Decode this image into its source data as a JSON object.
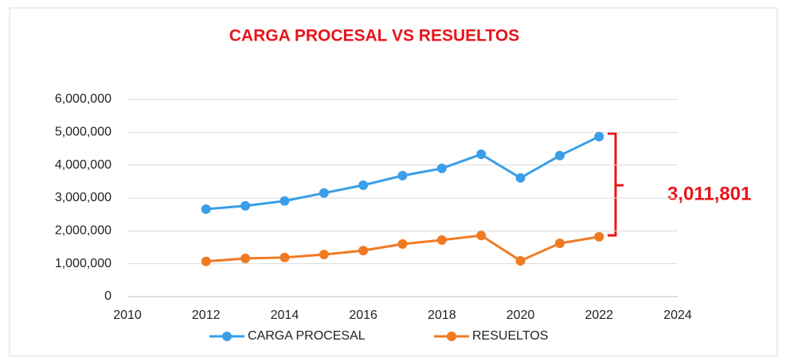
{
  "chart_data": {
    "type": "line",
    "title": "CARGA PROCESAL VS RESUELTOS",
    "annotation": "3,011,801",
    "x": [
      2012,
      2013,
      2014,
      2015,
      2016,
      2017,
      2018,
      2019,
      2020,
      2021,
      2022
    ],
    "series": [
      {
        "name": "CARGA PROCESAL",
        "color": "#3a9ee8",
        "values": [
          2660000,
          2760000,
          2910000,
          3150000,
          3390000,
          3680000,
          3900000,
          4330000,
          3610000,
          4290000,
          4870000
        ]
      },
      {
        "name": "RESUELTOS",
        "color": "#f07a22",
        "values": [
          1070000,
          1160000,
          1190000,
          1280000,
          1400000,
          1600000,
          1720000,
          1860000,
          1090000,
          1620000,
          1820000
        ]
      }
    ],
    "xlim": [
      2010,
      2024
    ],
    "xticks": [
      2010,
      2012,
      2014,
      2016,
      2018,
      2020,
      2022,
      2024
    ],
    "ylim": [
      0,
      6000000
    ],
    "yticks": [
      0,
      {
        "value": 1000000,
        "label": "1,000,000"
      },
      {
        "value": 2000000,
        "label": "2,000,000"
      },
      {
        "value": 3000000,
        "label": "3,000,000"
      },
      {
        "value": 4000000,
        "label": "4,000,000"
      },
      {
        "value": 5000000,
        "label": "5,000,000"
      },
      {
        "value": 6000000,
        "label": "6,000,000"
      }
    ],
    "grid": true,
    "legend": "bottom"
  }
}
